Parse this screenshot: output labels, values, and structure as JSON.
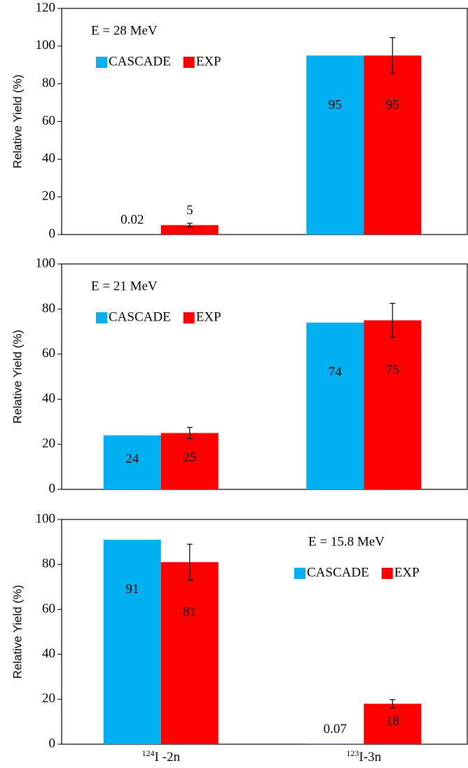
{
  "chart_data": [
    {
      "type": "bar",
      "annotation": "E = 28 MeV",
      "ylabel": "Relative Yield (%)",
      "categories": [
        null,
        null
      ],
      "series": [
        {
          "name": "CASCADE",
          "color": "#00b0f0",
          "values": [
            0.02,
            95
          ]
        },
        {
          "name": "EXP",
          "color": "#ff0000",
          "values": [
            5,
            95
          ],
          "errors": [
            1,
            9.5
          ]
        }
      ],
      "ylim": [
        0,
        120
      ],
      "yticks": [
        0,
        20,
        40,
        60,
        80,
        100,
        120
      ],
      "legend": "upper left"
    },
    {
      "type": "bar",
      "annotation": "E = 21 MeV",
      "ylabel": "Relative Yield (%)",
      "categories": [
        null,
        null
      ],
      "series": [
        {
          "name": "CASCADE",
          "color": "#00b0f0",
          "values": [
            24,
            74
          ]
        },
        {
          "name": "EXP",
          "color": "#ff0000",
          "values": [
            25,
            75
          ],
          "errors": [
            2.5,
            7.5
          ]
        }
      ],
      "ylim": [
        0,
        100
      ],
      "yticks": [
        0,
        20,
        40,
        60,
        80,
        100
      ],
      "legend": "upper left"
    },
    {
      "type": "bar",
      "annotation": "E = 15.8 MeV",
      "ylabel": "Relative Yield (%)",
      "categories": [
        "124I -2n",
        "123I-3n"
      ],
      "series": [
        {
          "name": "CASCADE",
          "color": "#00b0f0",
          "values": [
            91,
            0.07
          ]
        },
        {
          "name": "EXP",
          "color": "#ff0000",
          "values": [
            81,
            18
          ],
          "errors": [
            8,
            1.8
          ]
        }
      ],
      "ylim": [
        0,
        100
      ],
      "yticks": [
        0,
        20,
        40,
        60,
        80,
        100
      ],
      "legend": "upper right"
    }
  ]
}
